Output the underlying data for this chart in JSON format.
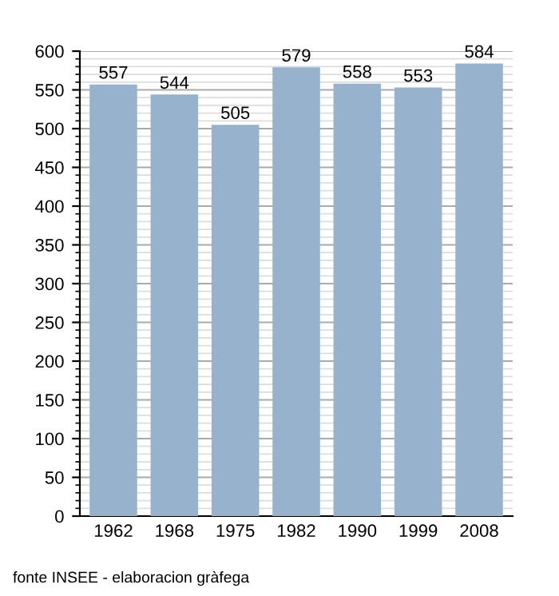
{
  "chart_data": {
    "type": "bar",
    "categories": [
      "1962",
      "1968",
      "1975",
      "1982",
      "1990",
      "1999",
      "2008"
    ],
    "values": [
      557,
      544,
      505,
      579,
      558,
      553,
      584
    ],
    "color": "#97b2cc",
    "data_labels": true,
    "ylim": [
      0,
      600
    ],
    "yticks": [
      0,
      50,
      100,
      150,
      200,
      250,
      300,
      350,
      400,
      450,
      500,
      550,
      600
    ],
    "grid": "y",
    "annotations": [
      "fonte INSEE - elaboracion gràfega"
    ]
  }
}
